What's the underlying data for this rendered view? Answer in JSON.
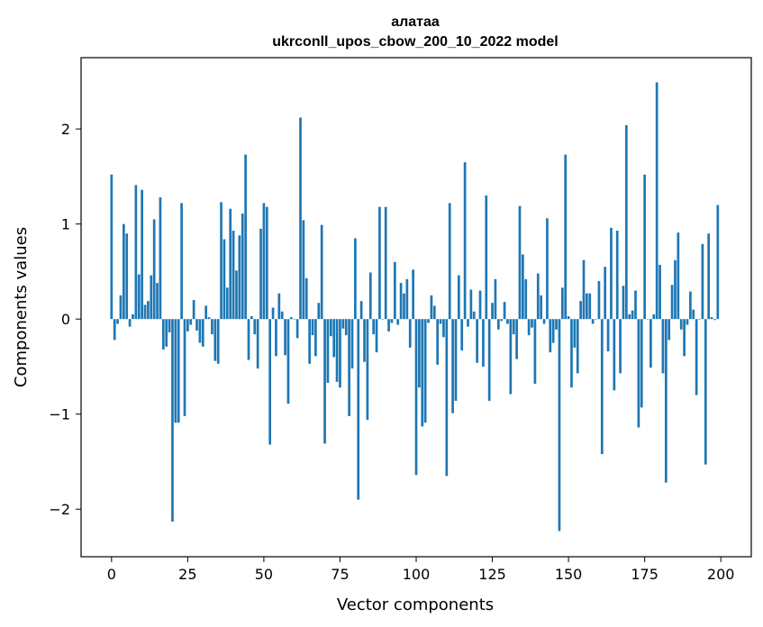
{
  "chart_data": {
    "type": "bar",
    "title": "алатаа",
    "subtitle": "ukrconll_upos_cbow_200_10_2022 model",
    "xlabel": "Vector components",
    "ylabel": "Components values",
    "xlim": [
      -10,
      210
    ],
    "ylim": [
      -2.5,
      2.75
    ],
    "xticks": [
      0,
      25,
      50,
      75,
      100,
      125,
      150,
      175,
      200
    ],
    "xtick_labels": [
      "0",
      "25",
      "50",
      "75",
      "100",
      "125",
      "150",
      "175",
      "200"
    ],
    "yticks": [
      -2,
      -1,
      0,
      1,
      2
    ],
    "ytick_labels": [
      "−2",
      "−1",
      "0",
      "1",
      "2"
    ],
    "bar_color": "#1f77b4",
    "grid": false,
    "x": [
      0,
      1,
      2,
      3,
      4,
      5,
      6,
      7,
      8,
      9,
      10,
      11,
      12,
      13,
      14,
      15,
      16,
      17,
      18,
      19,
      20,
      21,
      22,
      23,
      24,
      25,
      26,
      27,
      28,
      29,
      30,
      31,
      32,
      33,
      34,
      35,
      36,
      37,
      38,
      39,
      40,
      41,
      42,
      43,
      44,
      45,
      46,
      47,
      48,
      49,
      50,
      51,
      52,
      53,
      54,
      55,
      56,
      57,
      58,
      59,
      60,
      61,
      62,
      63,
      64,
      65,
      66,
      67,
      68,
      69,
      70,
      71,
      72,
      73,
      74,
      75,
      76,
      77,
      78,
      79,
      80,
      81,
      82,
      83,
      84,
      85,
      86,
      87,
      88,
      89,
      90,
      91,
      92,
      93,
      94,
      95,
      96,
      97,
      98,
      99,
      100,
      101,
      102,
      103,
      104,
      105,
      106,
      107,
      108,
      109,
      110,
      111,
      112,
      113,
      114,
      115,
      116,
      117,
      118,
      119,
      120,
      121,
      122,
      123,
      124,
      125,
      126,
      127,
      128,
      129,
      130,
      131,
      132,
      133,
      134,
      135,
      136,
      137,
      138,
      139,
      140,
      141,
      142,
      143,
      144,
      145,
      146,
      147,
      148,
      149,
      150,
      151,
      152,
      153,
      154,
      155,
      156,
      157,
      158,
      159,
      160,
      161,
      162,
      163,
      164,
      165,
      166,
      167,
      168,
      169,
      170,
      171,
      172,
      173,
      174,
      175,
      176,
      177,
      178,
      179,
      180,
      181,
      182,
      183,
      184,
      185,
      186,
      187,
      188,
      189,
      190,
      191,
      192,
      193,
      194,
      195,
      196,
      197,
      198,
      199
    ],
    "values": [
      1.52,
      -0.22,
      -0.05,
      0.25,
      1.0,
      0.9,
      -0.08,
      0.05,
      1.41,
      0.47,
      1.36,
      0.15,
      0.19,
      0.46,
      1.05,
      0.38,
      1.28,
      -0.32,
      -0.29,
      -0.14,
      -2.13,
      -1.09,
      -1.09,
      1.22,
      -1.02,
      -0.13,
      -0.06,
      0.2,
      -0.12,
      -0.25,
      -0.29,
      0.14,
      0.02,
      -0.16,
      -0.44,
      -0.47,
      1.23,
      0.84,
      0.33,
      1.16,
      0.93,
      0.51,
      0.88,
      1.11,
      1.73,
      -0.43,
      0.03,
      -0.16,
      -0.52,
      0.95,
      1.22,
      1.18,
      -1.32,
      0.12,
      -0.39,
      0.27,
      0.08,
      -0.38,
      -0.89,
      0.02,
      0.0,
      -0.2,
      2.12,
      1.04,
      0.43,
      -0.47,
      -0.17,
      -0.39,
      0.17,
      0.99,
      -1.31,
      -0.67,
      -0.18,
      -0.4,
      -0.66,
      -0.72,
      -0.1,
      -0.17,
      -1.02,
      -0.52,
      0.85,
      -1.9,
      0.19,
      -0.45,
      -1.06,
      0.49,
      -0.16,
      -0.35,
      1.18,
      0.0,
      1.18,
      -0.13,
      -0.04,
      0.6,
      -0.06,
      0.38,
      0.27,
      0.42,
      -0.3,
      0.52,
      -1.64,
      -0.72,
      -1.13,
      -1.09,
      -0.04,
      0.25,
      0.14,
      -0.48,
      -0.05,
      -0.19,
      -1.65,
      1.22,
      -0.99,
      -0.86,
      0.46,
      -0.33,
      1.65,
      -0.08,
      0.31,
      0.08,
      -0.46,
      0.3,
      -0.5,
      1.3,
      -0.86,
      0.17,
      0.42,
      -0.11,
      -0.02,
      0.18,
      -0.05,
      -0.79,
      -0.16,
      -0.42,
      1.19,
      0.68,
      0.42,
      -0.17,
      -0.09,
      -0.68,
      0.48,
      0.25,
      -0.05,
      1.06,
      -0.35,
      -0.25,
      -0.11,
      -2.23,
      0.33,
      1.73,
      0.03,
      -0.72,
      -0.3,
      -0.57,
      0.19,
      0.62,
      0.27,
      0.27,
      -0.05,
      0.0,
      0.4,
      -1.42,
      0.55,
      -0.34,
      0.96,
      -0.75,
      0.93,
      -0.57,
      0.35,
      2.04,
      0.05,
      0.09,
      0.3,
      -1.14,
      -0.93,
      1.52,
      0.0,
      -0.51,
      0.05,
      2.49,
      0.57,
      -0.57,
      -1.72,
      -0.22,
      0.36,
      0.62,
      0.91,
      -0.11,
      -0.39,
      -0.06,
      0.29,
      0.1,
      -0.8,
      0.0,
      0.79,
      -1.53,
      0.9,
      0.02,
      -0.01,
      1.2
    ]
  }
}
